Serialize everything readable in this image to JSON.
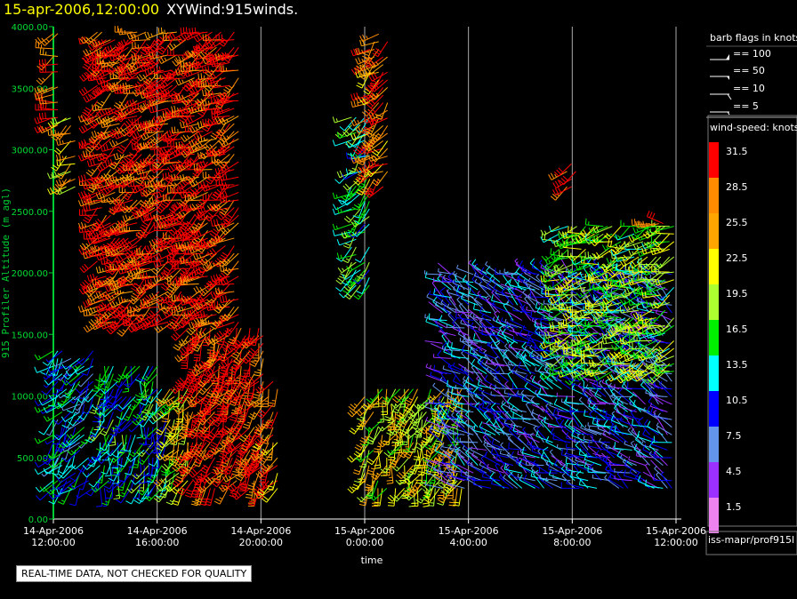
{
  "header": {
    "date_label": "15-apr-2006,12:00:00",
    "product_label": "XYWind:915winds."
  },
  "chart_data": {
    "type": "scatter",
    "subtype": "wind-barb",
    "ylabel": "915 Profiler Altitude (m agl)",
    "xlabel": "time",
    "ylim": [
      0,
      4000
    ],
    "y_ticks": [
      "0.00",
      "500.00",
      "1000.00",
      "1500.00",
      "2000.00",
      "2500.00",
      "3000.00",
      "3500.00",
      "4000.00"
    ],
    "x_ticks": [
      {
        "date": "14-Apr-2006",
        "time": "12:00:00"
      },
      {
        "date": "14-Apr-2006",
        "time": "16:00:00"
      },
      {
        "date": "14-Apr-2006",
        "time": "20:00:00"
      },
      {
        "date": "15-Apr-2006",
        "time": "0:00:00"
      },
      {
        "date": "15-Apr-2006",
        "time": "4:00:00"
      },
      {
        "date": "15-Apr-2006",
        "time": "8:00:00"
      },
      {
        "date": "15-Apr-2006",
        "time": "12:00:00"
      }
    ],
    "x_range_hours": [
      0,
      24
    ],
    "grid": "vertical",
    "legend_position": "right",
    "barb_flags": {
      "title": "barb flags in knots",
      "entries": [
        "== 100",
        "== 50",
        "== 10",
        "== 5"
      ]
    },
    "colorbar": {
      "title": "wind-speed: knots",
      "labels": [
        "31.5",
        "28.5",
        "25.5",
        "22.5",
        "19.5",
        "16.5",
        "13.5",
        "10.5",
        "7.5",
        "4.5",
        "1.5"
      ],
      "colors": [
        "#ff0000",
        "#ff8c00",
        "#ffa500",
        "#ffff00",
        "#adff2f",
        "#00ee00",
        "#00ffff",
        "#0000ff",
        "#6495ed",
        "#9b30ff",
        "#ee82ee"
      ]
    },
    "series": [
      {
        "hour_start": 0.0,
        "hour_end": 1.6,
        "alt_low": 250,
        "alt_high": 1400,
        "speed": 12,
        "dir": 220
      },
      {
        "hour_start": 0.0,
        "hour_end": 0.3,
        "alt_low": 3200,
        "alt_high": 4000,
        "speed": 31,
        "dir": 250
      },
      {
        "hour_start": 0.5,
        "hour_end": 1.0,
        "alt_low": 2700,
        "alt_high": 3300,
        "speed": 24,
        "dir": 240
      },
      {
        "hour_start": 1.7,
        "hour_end": 7.2,
        "alt_low": 1600,
        "alt_high": 4000,
        "speed": 31,
        "dir": 240
      },
      {
        "hour_start": 1.8,
        "hour_end": 4.5,
        "alt_low": 250,
        "alt_high": 1300,
        "speed": 14,
        "dir": 200
      },
      {
        "hour_start": 4.5,
        "hour_end": 5.2,
        "alt_low": 250,
        "alt_high": 1100,
        "speed": 22,
        "dir": 210
      },
      {
        "hour_start": 5.2,
        "hour_end": 8.2,
        "alt_low": 250,
        "alt_high": 1600,
        "speed": 31,
        "dir": 210
      },
      {
        "hour_start": 8.3,
        "hour_end": 8.8,
        "alt_low": 250,
        "alt_high": 1200,
        "speed": 28,
        "dir": 210
      },
      {
        "hour_start": 11.5,
        "hour_end": 12.2,
        "alt_low": 1900,
        "alt_high": 3300,
        "speed": 16,
        "dir": 230
      },
      {
        "hour_start": 12.2,
        "hour_end": 13.0,
        "alt_low": 2700,
        "alt_high": 4000,
        "speed": 28,
        "dir": 230
      },
      {
        "hour_start": 12.0,
        "hour_end": 15.8,
        "alt_low": 250,
        "alt_high": 1100,
        "speed": 22,
        "dir": 200
      },
      {
        "hour_start": 15.0,
        "hour_end": 24.0,
        "alt_low": 250,
        "alt_high": 2000,
        "speed": 9,
        "dir": 300
      },
      {
        "hour_start": 19.5,
        "hour_end": 24.0,
        "alt_low": 1200,
        "alt_high": 2400,
        "speed": 19,
        "dir": 250
      },
      {
        "hour_start": 19.8,
        "hour_end": 20.3,
        "alt_low": 2700,
        "alt_high": 2900,
        "speed": 31,
        "dir": 250
      },
      {
        "hour_start": 23.0,
        "hour_end": 23.6,
        "alt_low": 2400,
        "alt_high": 2450,
        "speed": 31,
        "dir": 270
      }
    ]
  },
  "footer": {
    "source": "iss-mapr/prof915l",
    "quality_note": "REAL-TIME DATA, NOT CHECKED FOR QUALITY"
  }
}
